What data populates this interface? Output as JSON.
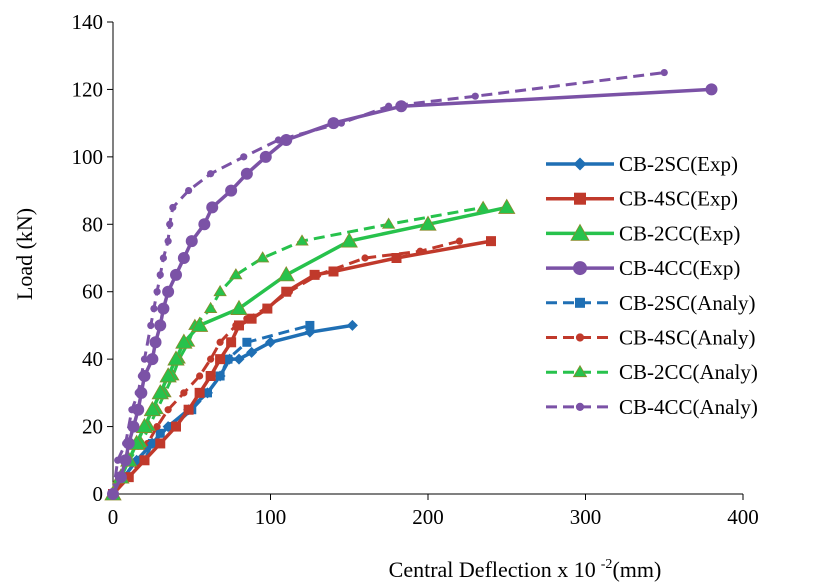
{
  "chart_data": {
    "type": "line",
    "title": "",
    "xlabel": "Central Deflection x 10",
    "xlabel_superscript": "-2",
    "xlabel_unit": "(mm)",
    "ylabel": "Load (kN)",
    "xlim": [
      0,
      400
    ],
    "ylim": [
      0,
      140
    ],
    "x_ticks": [
      "0",
      "100",
      "200",
      "300",
      "400"
    ],
    "y_ticks": [
      "0",
      "20",
      "40",
      "60",
      "80",
      "100",
      "120",
      "140"
    ],
    "grid": false,
    "legend_position": "right",
    "series": [
      {
        "name": "CB-2SC(Exp)",
        "color": "#1f6fb4",
        "dash": false,
        "marker": "diamond",
        "points": [
          [
            0,
            0
          ],
          [
            7,
            5
          ],
          [
            15,
            10
          ],
          [
            25,
            15
          ],
          [
            35,
            20
          ],
          [
            48,
            25
          ],
          [
            60,
            30
          ],
          [
            68,
            35
          ],
          [
            74,
            40
          ],
          [
            80,
            40
          ],
          [
            88,
            42
          ],
          [
            100,
            45
          ],
          [
            125,
            48
          ],
          [
            152,
            50
          ]
        ]
      },
      {
        "name": "CB-4SC(Exp)",
        "color": "#c0392b",
        "dash": false,
        "marker": "square",
        "points": [
          [
            0,
            0
          ],
          [
            10,
            5
          ],
          [
            20,
            10
          ],
          [
            30,
            15
          ],
          [
            40,
            20
          ],
          [
            48,
            25
          ],
          [
            55,
            30
          ],
          [
            62,
            35
          ],
          [
            68,
            40
          ],
          [
            75,
            45
          ],
          [
            80,
            50
          ],
          [
            88,
            52
          ],
          [
            98,
            55
          ],
          [
            110,
            60
          ],
          [
            128,
            65
          ],
          [
            140,
            66
          ],
          [
            180,
            70
          ],
          [
            240,
            75
          ]
        ]
      },
      {
        "name": "CB-2CC(Exp)",
        "color": "#27c24c",
        "dash": false,
        "marker": "triangle",
        "points": [
          [
            0,
            0
          ],
          [
            5,
            5
          ],
          [
            10,
            10
          ],
          [
            15,
            15
          ],
          [
            20,
            20
          ],
          [
            25,
            25
          ],
          [
            30,
            30
          ],
          [
            35,
            35
          ],
          [
            40,
            40
          ],
          [
            45,
            45
          ],
          [
            55,
            50
          ],
          [
            80,
            55
          ],
          [
            110,
            65
          ],
          [
            150,
            75
          ],
          [
            200,
            80
          ],
          [
            250,
            85
          ]
        ]
      },
      {
        "name": "CB-4CC(Exp)",
        "color": "#7b52a6",
        "dash": false,
        "marker": "circle",
        "points": [
          [
            0,
            0
          ],
          [
            5,
            5
          ],
          [
            8,
            10
          ],
          [
            10,
            15
          ],
          [
            13,
            20
          ],
          [
            16,
            25
          ],
          [
            18,
            30
          ],
          [
            20,
            35
          ],
          [
            25,
            40
          ],
          [
            27,
            45
          ],
          [
            30,
            50
          ],
          [
            32,
            55
          ],
          [
            35,
            60
          ],
          [
            40,
            65
          ],
          [
            45,
            70
          ],
          [
            50,
            75
          ],
          [
            58,
            80
          ],
          [
            63,
            85
          ],
          [
            75,
            90
          ],
          [
            85,
            95
          ],
          [
            97,
            100
          ],
          [
            110,
            105
          ],
          [
            140,
            110
          ],
          [
            183,
            115
          ],
          [
            380,
            120
          ]
        ]
      },
      {
        "name": "CB-2SC(Analy)",
        "color": "#1f6fb4",
        "dash": true,
        "marker": "square",
        "points": [
          [
            0,
            0
          ],
          [
            10,
            5
          ],
          [
            20,
            10
          ],
          [
            25,
            15
          ],
          [
            30,
            18
          ],
          [
            38,
            20
          ],
          [
            50,
            25
          ],
          [
            60,
            30
          ],
          [
            68,
            35
          ],
          [
            73,
            40
          ],
          [
            85,
            45
          ],
          [
            125,
            50
          ]
        ]
      },
      {
        "name": "CB-4SC(Analy)",
        "color": "#c0392b",
        "dash": true,
        "marker": "circle",
        "points": [
          [
            0,
            0
          ],
          [
            10,
            5
          ],
          [
            18,
            10
          ],
          [
            22,
            15
          ],
          [
            28,
            20
          ],
          [
            35,
            25
          ],
          [
            45,
            30
          ],
          [
            55,
            35
          ],
          [
            62,
            40
          ],
          [
            68,
            45
          ],
          [
            78,
            50
          ],
          [
            85,
            52
          ],
          [
            97,
            55
          ],
          [
            112,
            60
          ],
          [
            130,
            65
          ],
          [
            160,
            70
          ],
          [
            195,
            72
          ],
          [
            220,
            75
          ]
        ]
      },
      {
        "name": "CB-2CC(Analy)",
        "color": "#27c24c",
        "dash": true,
        "marker": "triangle",
        "points": [
          [
            0,
            0
          ],
          [
            10,
            10
          ],
          [
            18,
            15
          ],
          [
            23,
            20
          ],
          [
            28,
            25
          ],
          [
            33,
            30
          ],
          [
            38,
            35
          ],
          [
            42,
            40
          ],
          [
            48,
            45
          ],
          [
            52,
            50
          ],
          [
            62,
            55
          ],
          [
            68,
            60
          ],
          [
            78,
            65
          ],
          [
            95,
            70
          ],
          [
            120,
            75
          ],
          [
            175,
            80
          ],
          [
            235,
            85
          ]
        ]
      },
      {
        "name": "CB-4CC(Analy)",
        "color": "#7b52a6",
        "dash": true,
        "marker": "circle",
        "points": [
          [
            0,
            0
          ],
          [
            3,
            10
          ],
          [
            8,
            15
          ],
          [
            12,
            25
          ],
          [
            16,
            30
          ],
          [
            18,
            35
          ],
          [
            20,
            40
          ],
          [
            24,
            50
          ],
          [
            26,
            55
          ],
          [
            28,
            60
          ],
          [
            30,
            65
          ],
          [
            32,
            70
          ],
          [
            35,
            75
          ],
          [
            36,
            80
          ],
          [
            38,
            85
          ],
          [
            48,
            90
          ],
          [
            62,
            95
          ],
          [
            83,
            100
          ],
          [
            105,
            105
          ],
          [
            145,
            110
          ],
          [
            175,
            115
          ],
          [
            230,
            118
          ],
          [
            350,
            125
          ]
        ]
      }
    ]
  }
}
